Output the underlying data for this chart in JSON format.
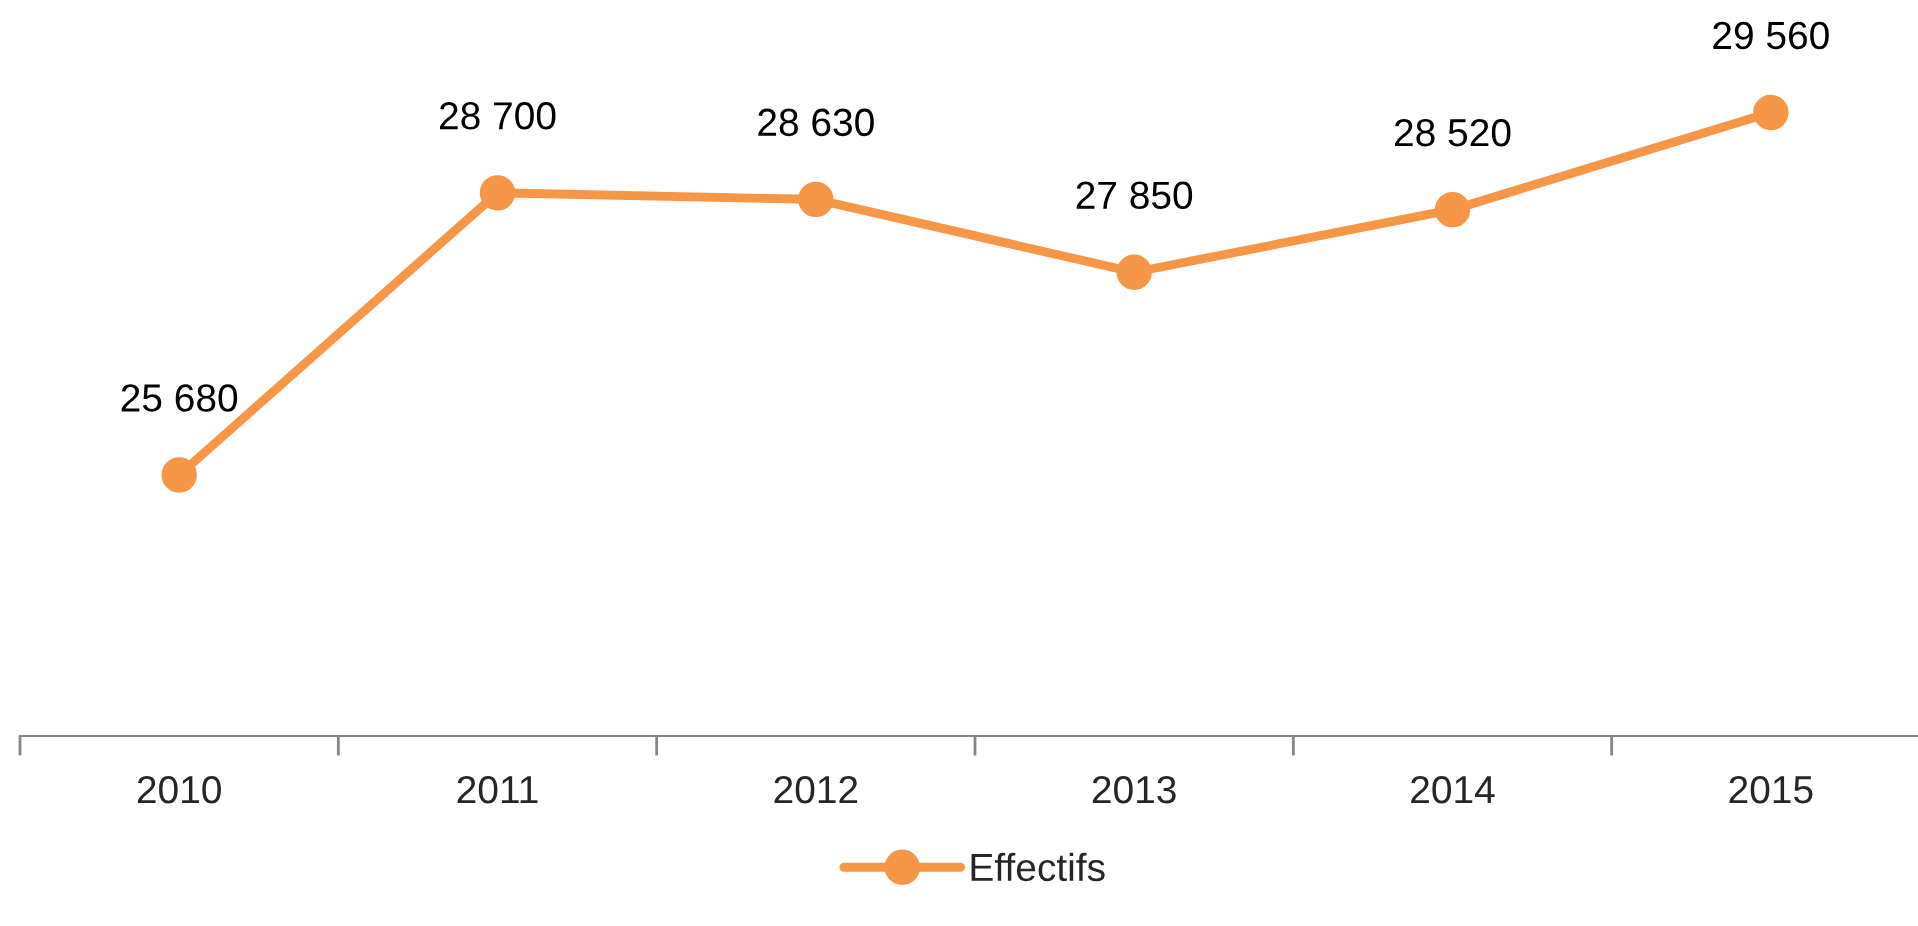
{
  "chart_data": {
    "type": "line",
    "categories": [
      "2010",
      "2011",
      "2012",
      "2013",
      "2014",
      "2015"
    ],
    "series": [
      {
        "name": "Effectifs",
        "color": "#f79646",
        "values": [
          25680,
          28700,
          28630,
          27850,
          28520,
          29560
        ],
        "value_labels": [
          "25 680",
          "28 700",
          "28 630",
          "27 850",
          "28 520",
          "29 560"
        ]
      }
    ],
    "marker": "circle",
    "line_style": "solid",
    "grid": false,
    "legend": "bottom",
    "tick_labels": "x"
  }
}
